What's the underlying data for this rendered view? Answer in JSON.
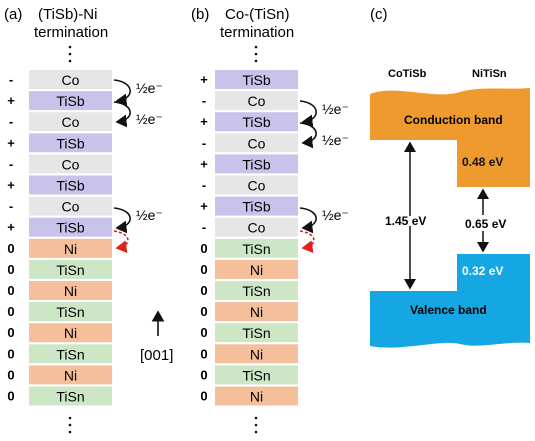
{
  "panels": {
    "a": {
      "label": "(a)",
      "title_line1": "(TiSb)-Ni",
      "title_line2": "termination",
      "layers": [
        {
          "name": "Co",
          "sign": "-"
        },
        {
          "name": "TiSb",
          "sign": "+"
        },
        {
          "name": "Co",
          "sign": "-"
        },
        {
          "name": "TiSb",
          "sign": "+"
        },
        {
          "name": "Co",
          "sign": "-"
        },
        {
          "name": "TiSb",
          "sign": "+"
        },
        {
          "name": "Co",
          "sign": "-"
        },
        {
          "name": "TiSb",
          "sign": "+"
        },
        {
          "name": "Ni",
          "sign": "0"
        },
        {
          "name": "TiSn",
          "sign": "0"
        },
        {
          "name": "Ni",
          "sign": "0"
        },
        {
          "name": "TiSn",
          "sign": "0"
        },
        {
          "name": "Ni",
          "sign": "0"
        },
        {
          "name": "TiSn",
          "sign": "0"
        },
        {
          "name": "Ni",
          "sign": "0"
        },
        {
          "name": "TiSn",
          "sign": "0"
        }
      ],
      "electron_labels": [
        "½e⁻",
        "½e⁻",
        "½e⁻"
      ],
      "direction_label": "[001]"
    },
    "b": {
      "label": "(b)",
      "title_line1": "Co-(TiSn)",
      "title_line2": "termination",
      "layers": [
        {
          "name": "TiSb",
          "sign": "+"
        },
        {
          "name": "Co",
          "sign": "-"
        },
        {
          "name": "TiSb",
          "sign": "+"
        },
        {
          "name": "Co",
          "sign": "-"
        },
        {
          "name": "TiSb",
          "sign": "+"
        },
        {
          "name": "Co",
          "sign": "-"
        },
        {
          "name": "TiSb",
          "sign": "+"
        },
        {
          "name": "Co",
          "sign": "-"
        },
        {
          "name": "TiSn",
          "sign": "0"
        },
        {
          "name": "Ni",
          "sign": "0"
        },
        {
          "name": "TiSn",
          "sign": "0"
        },
        {
          "name": "Ni",
          "sign": "0"
        },
        {
          "name": "TiSn",
          "sign": "0"
        },
        {
          "name": "Ni",
          "sign": "0"
        },
        {
          "name": "TiSn",
          "sign": "0"
        },
        {
          "name": "Ni",
          "sign": "0"
        }
      ],
      "electron_labels": [
        "½e⁻",
        "½e⁻",
        "½e⁻"
      ]
    },
    "c": {
      "label": "(c)",
      "left_material": "CoTiSb",
      "right_material": "NiTiSn",
      "conduction_band": "Conduction band",
      "valence_band": "Valence band",
      "gap_left": "1.45 eV",
      "gap_right": "0.65 eV",
      "cb_offset": "0.48 eV",
      "vb_offset": "0.32 eV"
    }
  },
  "colors": {
    "Co": "#e6e6e6",
    "TiSb": "#c9c3ec",
    "Ni": "#f6bf9c",
    "TiSn": "#cde6c6",
    "conduction": "#ef9a2e",
    "valence": "#14a7e3",
    "dashed_arrow": "#e0201b"
  }
}
